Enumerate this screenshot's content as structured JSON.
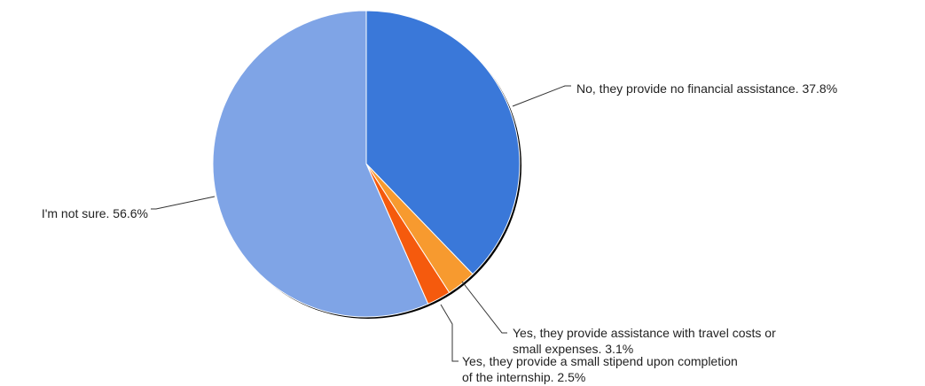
{
  "chart_data": {
    "type": "pie",
    "title": "",
    "slices": [
      {
        "label": "No, they provide no financial assistance.",
        "value": 37.8,
        "display": "37.8%",
        "color": "#3a78d9"
      },
      {
        "label": "Yes, they provide assistance with travel costs or small expenses.",
        "value": 3.1,
        "display": "3.1%",
        "color": "#f79a2f"
      },
      {
        "label": "Yes, they provide a small stipend upon completion of the internship.",
        "value": 2.5,
        "display": "2.5%",
        "color": "#f55a0d"
      },
      {
        "label": "I'm not sure.",
        "value": 56.6,
        "display": "56.6%",
        "color": "#7fa4e6"
      }
    ],
    "start_angle_deg": 0,
    "direction": "clockwise",
    "legend": "none",
    "label_lines": [
      [
        "No, they provide no financial assistance. 37.8%"
      ],
      [
        "Yes, they provide assistance with travel costs or",
        "small expenses. 3.1%"
      ],
      [
        "Yes, they provide a small stipend upon completion",
        "of the internship. 2.5%"
      ],
      [
        "I'm not sure. 56.6%"
      ]
    ]
  }
}
